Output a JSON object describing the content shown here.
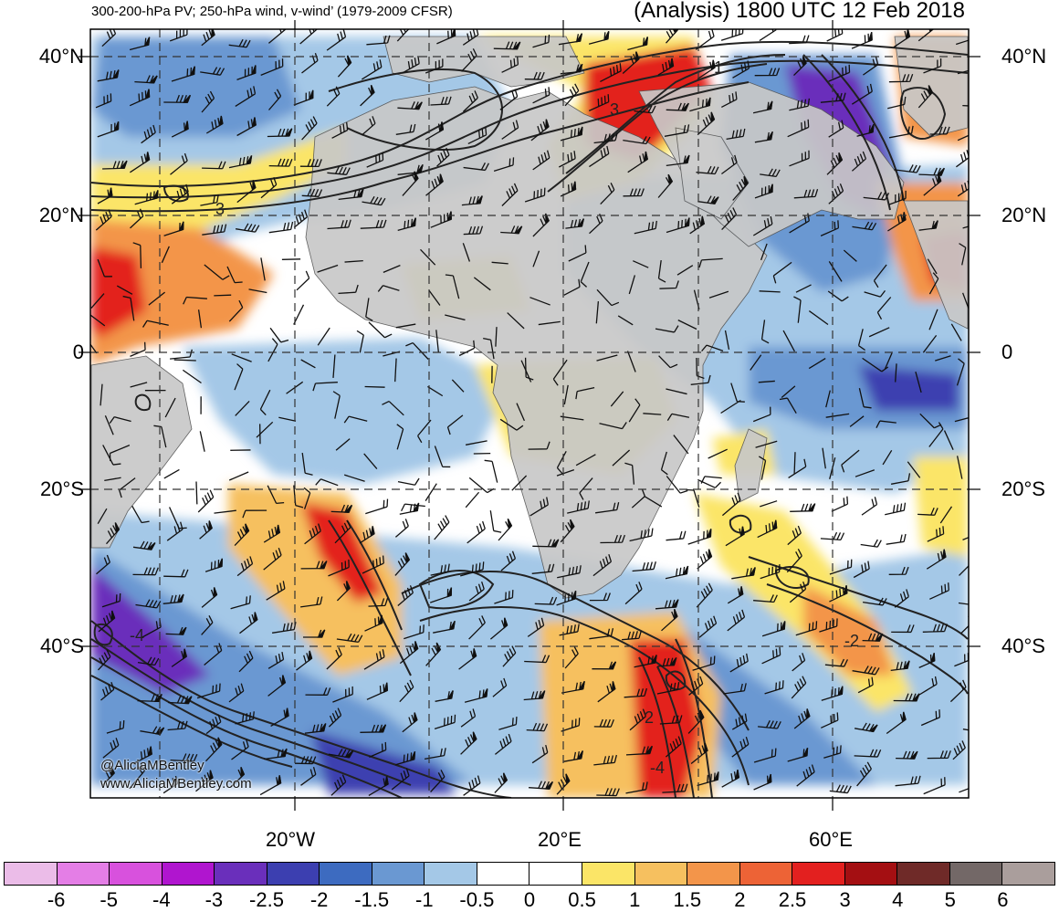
{
  "header": {
    "left_title": "300-200-hPa PV; 250-hPa wind, v-wind’ (1979-2009 CFSR)",
    "right_title": "(Analysis) 1800 UTC 12 Feb 2018"
  },
  "lat_labels": [
    "40°N",
    "20°N",
    "0",
    "20°S",
    "40°S"
  ],
  "lon_labels": [
    "20°W",
    "20°E",
    "60°E"
  ],
  "contour_labels": [
    "1",
    "3",
    "3",
    "-4",
    "2",
    "-2",
    "-4"
  ],
  "credits": [
    "@AliciaMBentley",
    "www.AliciaMBentley.com"
  ],
  "colorbar": {
    "colors": [
      "#ebbce8",
      "#e47ee6",
      "#d851dd",
      "#b015cf",
      "#6a2fbb",
      "#3c3fb0",
      "#3d6bc0",
      "#6a98d2",
      "#a4c8e7",
      "#ffffff",
      "#ffffff",
      "#fbe567",
      "#f6c05f",
      "#f3954a",
      "#ed6336",
      "#e3201f",
      "#a40f12",
      "#6f2a28",
      "#736867",
      "#aa9e9c"
    ],
    "labels": [
      "-6",
      "-5",
      "-4",
      "-3",
      "-2.5",
      "-2",
      "-1.5",
      "-1",
      "-0.5",
      "0",
      "0.5",
      "1",
      "1.5",
      "2",
      "2.5",
      "3",
      "4",
      "5",
      "6"
    ]
  },
  "map": {
    "land_color": "#c8c8c8",
    "ocean_color": "#ffffff",
    "contour_color": "#222222",
    "grid_color": "#333333"
  }
}
